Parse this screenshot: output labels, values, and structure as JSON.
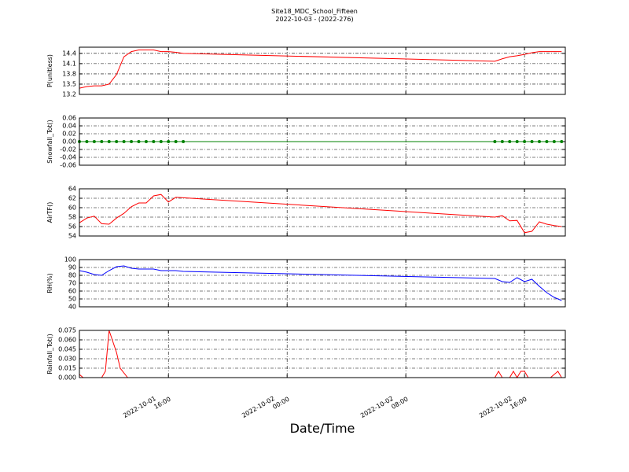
{
  "chart_data": [
    {
      "type": "line",
      "title": "Site18_MDC_School_Fifteen",
      "subtitle": "2022-10-03 - (2022-276)",
      "ylabel": "P(unitless)",
      "color": "#ff0000",
      "grid": true,
      "xlim": [
        "2022-10-01 10:00",
        "2022-10-02 18:45"
      ],
      "xticks": [
        "2022-10-01 16:00",
        "2022-10-02 00:00",
        "2022-10-02 08:00",
        "2022-10-02 16:00"
      ],
      "ylim": [
        13.2,
        14.58
      ],
      "yticks": [
        13.2,
        13.5,
        13.8,
        14.1,
        14.4
      ],
      "x": [
        "2022-10-01 10:00",
        "2022-10-01 10:30",
        "2022-10-01 11:00",
        "2022-10-01 11:30",
        "2022-10-01 12:00",
        "2022-10-01 12:30",
        "2022-10-01 13:00",
        "2022-10-01 13:30",
        "2022-10-01 14:00",
        "2022-10-01 14:30",
        "2022-10-01 15:00",
        "2022-10-01 15:30",
        "2022-10-01 16:00",
        "2022-10-01 16:30",
        "2022-10-01 17:00",
        "2022-10-02 14:00",
        "2022-10-02 14:30",
        "2022-10-02 15:00",
        "2022-10-02 15:30",
        "2022-10-02 16:00",
        "2022-10-02 16:30",
        "2022-10-02 17:00",
        "2022-10-02 17:30",
        "2022-10-02 18:00",
        "2022-10-02 18:30"
      ],
      "values": [
        13.38,
        13.43,
        13.45,
        13.45,
        13.5,
        13.78,
        14.3,
        14.45,
        14.5,
        14.5,
        14.5,
        14.45,
        14.45,
        14.43,
        14.4,
        14.17,
        14.24,
        14.3,
        14.33,
        14.37,
        14.42,
        14.45,
        14.45,
        14.45,
        14.45
      ]
    },
    {
      "type": "line",
      "ylabel": "Snowfall_Tot()",
      "color": "#008000",
      "marker": true,
      "grid": true,
      "xlim": [
        "2022-10-01 10:00",
        "2022-10-02 18:45"
      ],
      "xticks": [
        "2022-10-01 16:00",
        "2022-10-02 00:00",
        "2022-10-02 08:00",
        "2022-10-02 16:00"
      ],
      "ylim": [
        -0.06,
        0.06
      ],
      "yticks": [
        -0.06,
        -0.04,
        -0.02,
        {
          "value": 0,
          "label": "0.00"
        },
        0.02,
        0.04,
        0.06
      ],
      "x": [
        "2022-10-01 10:00",
        "2022-10-01 10:30",
        "2022-10-01 11:00",
        "2022-10-01 11:30",
        "2022-10-01 12:00",
        "2022-10-01 12:30",
        "2022-10-01 13:00",
        "2022-10-01 13:30",
        "2022-10-01 14:00",
        "2022-10-01 14:30",
        "2022-10-01 15:00",
        "2022-10-01 15:30",
        "2022-10-01 16:00",
        "2022-10-01 16:30",
        "2022-10-01 17:00",
        "2022-10-02 14:00",
        "2022-10-02 14:30",
        "2022-10-02 15:00",
        "2022-10-02 15:30",
        "2022-10-02 16:00",
        "2022-10-02 16:30",
        "2022-10-02 17:00",
        "2022-10-02 17:30",
        "2022-10-02 18:00",
        "2022-10-02 18:30"
      ],
      "values": [
        0,
        0,
        0,
        0,
        0,
        0,
        0,
        0,
        0,
        0,
        0,
        0,
        0,
        0,
        0,
        0,
        0,
        0,
        0,
        0,
        0,
        0,
        0,
        0,
        0
      ]
    },
    {
      "type": "line",
      "ylabel": "AirTF()",
      "color": "#ff0000",
      "grid": true,
      "xlim": [
        "2022-10-01 10:00",
        "2022-10-02 18:45"
      ],
      "xticks": [
        "2022-10-01 16:00",
        "2022-10-02 00:00",
        "2022-10-02 08:00",
        "2022-10-02 16:00"
      ],
      "ylim": [
        54,
        64
      ],
      "yticks": [
        54,
        56,
        58,
        60,
        62,
        64
      ],
      "x": [
        "2022-10-01 10:00",
        "2022-10-01 10:30",
        "2022-10-01 11:00",
        "2022-10-01 11:30",
        "2022-10-01 12:00",
        "2022-10-01 12:30",
        "2022-10-01 13:00",
        "2022-10-01 13:30",
        "2022-10-01 14:00",
        "2022-10-01 14:30",
        "2022-10-01 15:00",
        "2022-10-01 15:30",
        "2022-10-01 16:00",
        "2022-10-01 16:30",
        "2022-10-01 17:00",
        "2022-10-02 14:00",
        "2022-10-02 14:30",
        "2022-10-02 15:00",
        "2022-10-02 15:30",
        "2022-10-02 16:00",
        "2022-10-02 16:30",
        "2022-10-02 17:00",
        "2022-10-02 17:30",
        "2022-10-02 18:00",
        "2022-10-02 18:30"
      ],
      "values": [
        56.8,
        57.8,
        58.2,
        56.6,
        56.5,
        57.8,
        58.8,
        60.2,
        61,
        61,
        62.5,
        62.8,
        61.2,
        62.2,
        62.1,
        58,
        58.3,
        57.2,
        57.3,
        54.7,
        55,
        57,
        56.5,
        56.2,
        56
      ]
    },
    {
      "type": "line",
      "ylabel": "RH(%)",
      "color": "#0000ff",
      "grid": true,
      "xlim": [
        "2022-10-01 10:00",
        "2022-10-02 18:45"
      ],
      "xticks": [
        "2022-10-01 16:00",
        "2022-10-02 00:00",
        "2022-10-02 08:00",
        "2022-10-02 16:00"
      ],
      "ylim": [
        40,
        100
      ],
      "yticks": [
        40,
        50,
        60,
        70,
        80,
        90,
        100
      ],
      "x": [
        "2022-10-01 10:00",
        "2022-10-01 10:30",
        "2022-10-01 11:00",
        "2022-10-01 11:30",
        "2022-10-01 12:00",
        "2022-10-01 12:30",
        "2022-10-01 13:00",
        "2022-10-01 13:30",
        "2022-10-01 14:00",
        "2022-10-01 14:30",
        "2022-10-01 15:00",
        "2022-10-01 15:30",
        "2022-10-01 16:00",
        "2022-10-01 16:30",
        "2022-10-01 17:00",
        "2022-10-02 14:00",
        "2022-10-02 14:30",
        "2022-10-02 15:00",
        "2022-10-02 15:30",
        "2022-10-02 16:00",
        "2022-10-02 16:30",
        "2022-10-02 17:00",
        "2022-10-02 17:30",
        "2022-10-02 18:00",
        "2022-10-02 18:30"
      ],
      "values": [
        86,
        84,
        81,
        80,
        86,
        91,
        92,
        89,
        88,
        88,
        88,
        86,
        86,
        86,
        85,
        76,
        72,
        71,
        77,
        72,
        75,
        66,
        58,
        52,
        48
      ]
    },
    {
      "type": "line",
      "ylabel": "Rainfall_Tot()",
      "xlabel": "Date/Time",
      "color": "#ff0000",
      "grid": true,
      "xlim": [
        "2022-10-01 10:00",
        "2022-10-02 18:45"
      ],
      "xticks": [
        {
          "value": "2022-10-01 16:00",
          "label": "2022-10-01\n16:00"
        },
        {
          "value": "2022-10-02 00:00",
          "label": "2022-10-02\n00:00"
        },
        {
          "value": "2022-10-02 08:00",
          "label": "2022-10-02\n08:00"
        },
        {
          "value": "2022-10-02 16:00",
          "label": "2022-10-02\n16:00"
        }
      ],
      "ylim": [
        0,
        0.075
      ],
      "yticks": [
        {
          "value": 0,
          "label": "0.000"
        },
        0.015,
        {
          "value": 0.03,
          "label": "0.030"
        },
        0.045,
        {
          "value": 0.06,
          "label": "0.060"
        },
        0.075
      ],
      "x": [
        "2022-10-01 10:00",
        "2022-10-01 10:15",
        "2022-10-01 11:30",
        "2022-10-01 11:45",
        "2022-10-01 12:00",
        "2022-10-01 12:30",
        "2022-10-01 12:45",
        "2022-10-01 13:15",
        "2022-10-01 17:00",
        "2022-10-02 14:00",
        "2022-10-02 14:15",
        "2022-10-02 14:30",
        "2022-10-02 15:00",
        "2022-10-02 15:15",
        "2022-10-02 15:30",
        "2022-10-02 15:45",
        "2022-10-02 16:00",
        "2022-10-02 16:15",
        "2022-10-02 17:45",
        "2022-10-02 18:15",
        "2022-10-02 18:30"
      ],
      "values": [
        0.005,
        0,
        0,
        0.01,
        0.075,
        0.04,
        0.015,
        0,
        0,
        0,
        0.01,
        0,
        0,
        0.01,
        0,
        0.01,
        0.01,
        0,
        0,
        0.01,
        0
      ]
    }
  ]
}
